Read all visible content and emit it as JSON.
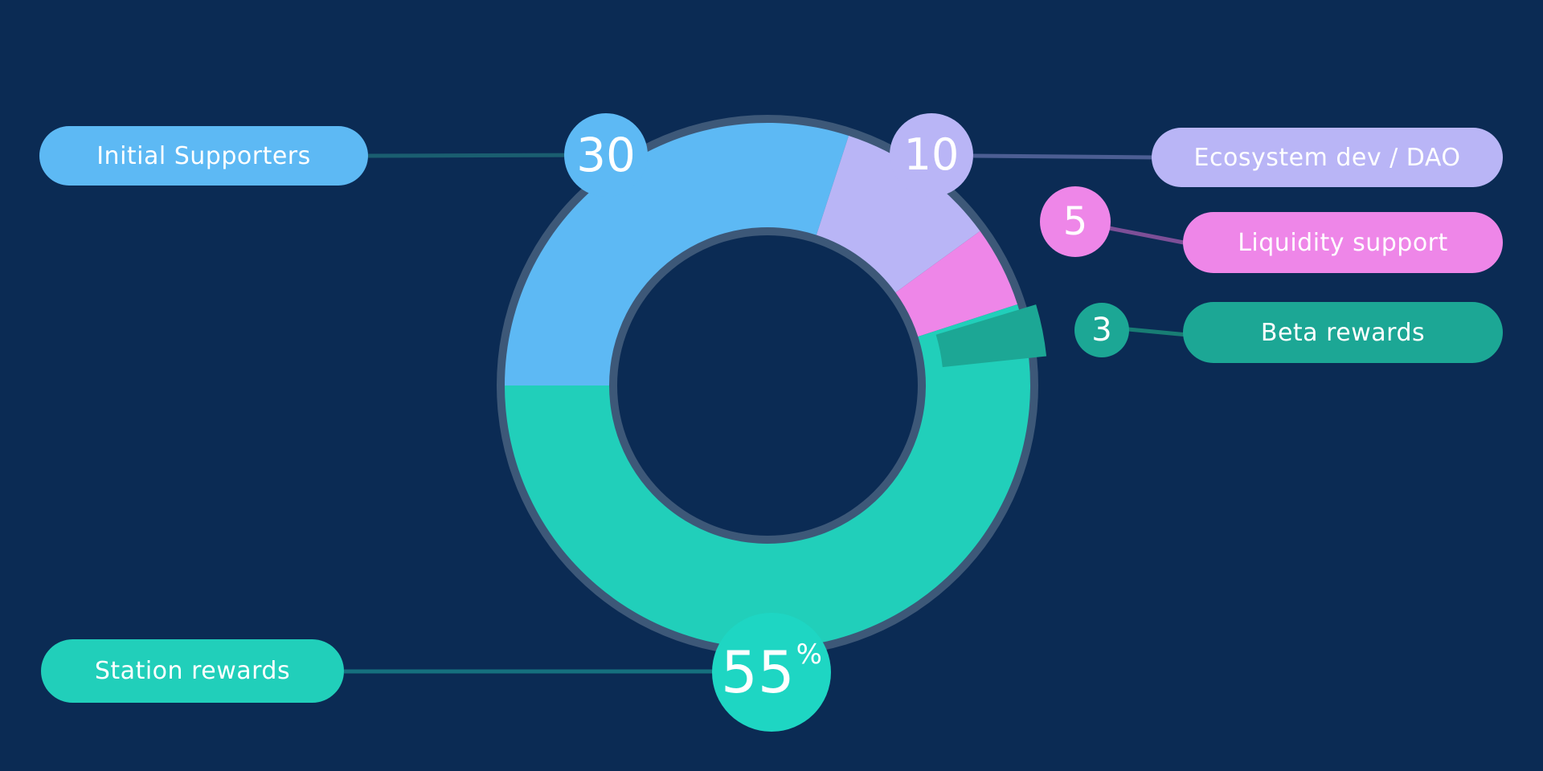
{
  "background": "#0b2b54",
  "chart_data": {
    "type": "pie",
    "subtype": "donut",
    "title": "",
    "unit": "%",
    "legend_position": "sides",
    "start_angle_compass": 270,
    "ring_border_color": "#3d5878",
    "hole_color": "#0b2b54",
    "notes": "values are percents; Beta rewards (3) is drawn as an exploded overlay wedge on top of the ring",
    "segments": [
      {
        "label": "Initial Supporters",
        "value": 30,
        "badge_text": "30",
        "color": "#5db9f4",
        "line_color": "#1a5e70",
        "label_side": "left",
        "exploded": false
      },
      {
        "label": "Ecosystem dev / DAO",
        "value": 10,
        "badge_text": "10",
        "color": "#b9b5f6",
        "line_color": "#4c5e93",
        "label_side": "right",
        "exploded": false
      },
      {
        "label": "Liquidity support",
        "value": 5,
        "badge_text": "5",
        "color": "#ee86e8",
        "line_color": "#7d4f97",
        "label_side": "right",
        "exploded": false
      },
      {
        "label": "Beta rewards",
        "value": 3,
        "badge_text": "3",
        "color": "#1ca795",
        "line_color": "#187d74",
        "label_side": "right",
        "exploded": true
      },
      {
        "label": "Station rewards",
        "value": 55,
        "badge_text": "55",
        "badge_suffix": "%",
        "color": "#21cfba",
        "badge_color": "#1ed6c3",
        "line_color": "#16707e",
        "label_side": "left",
        "exploded": false
      }
    ]
  }
}
